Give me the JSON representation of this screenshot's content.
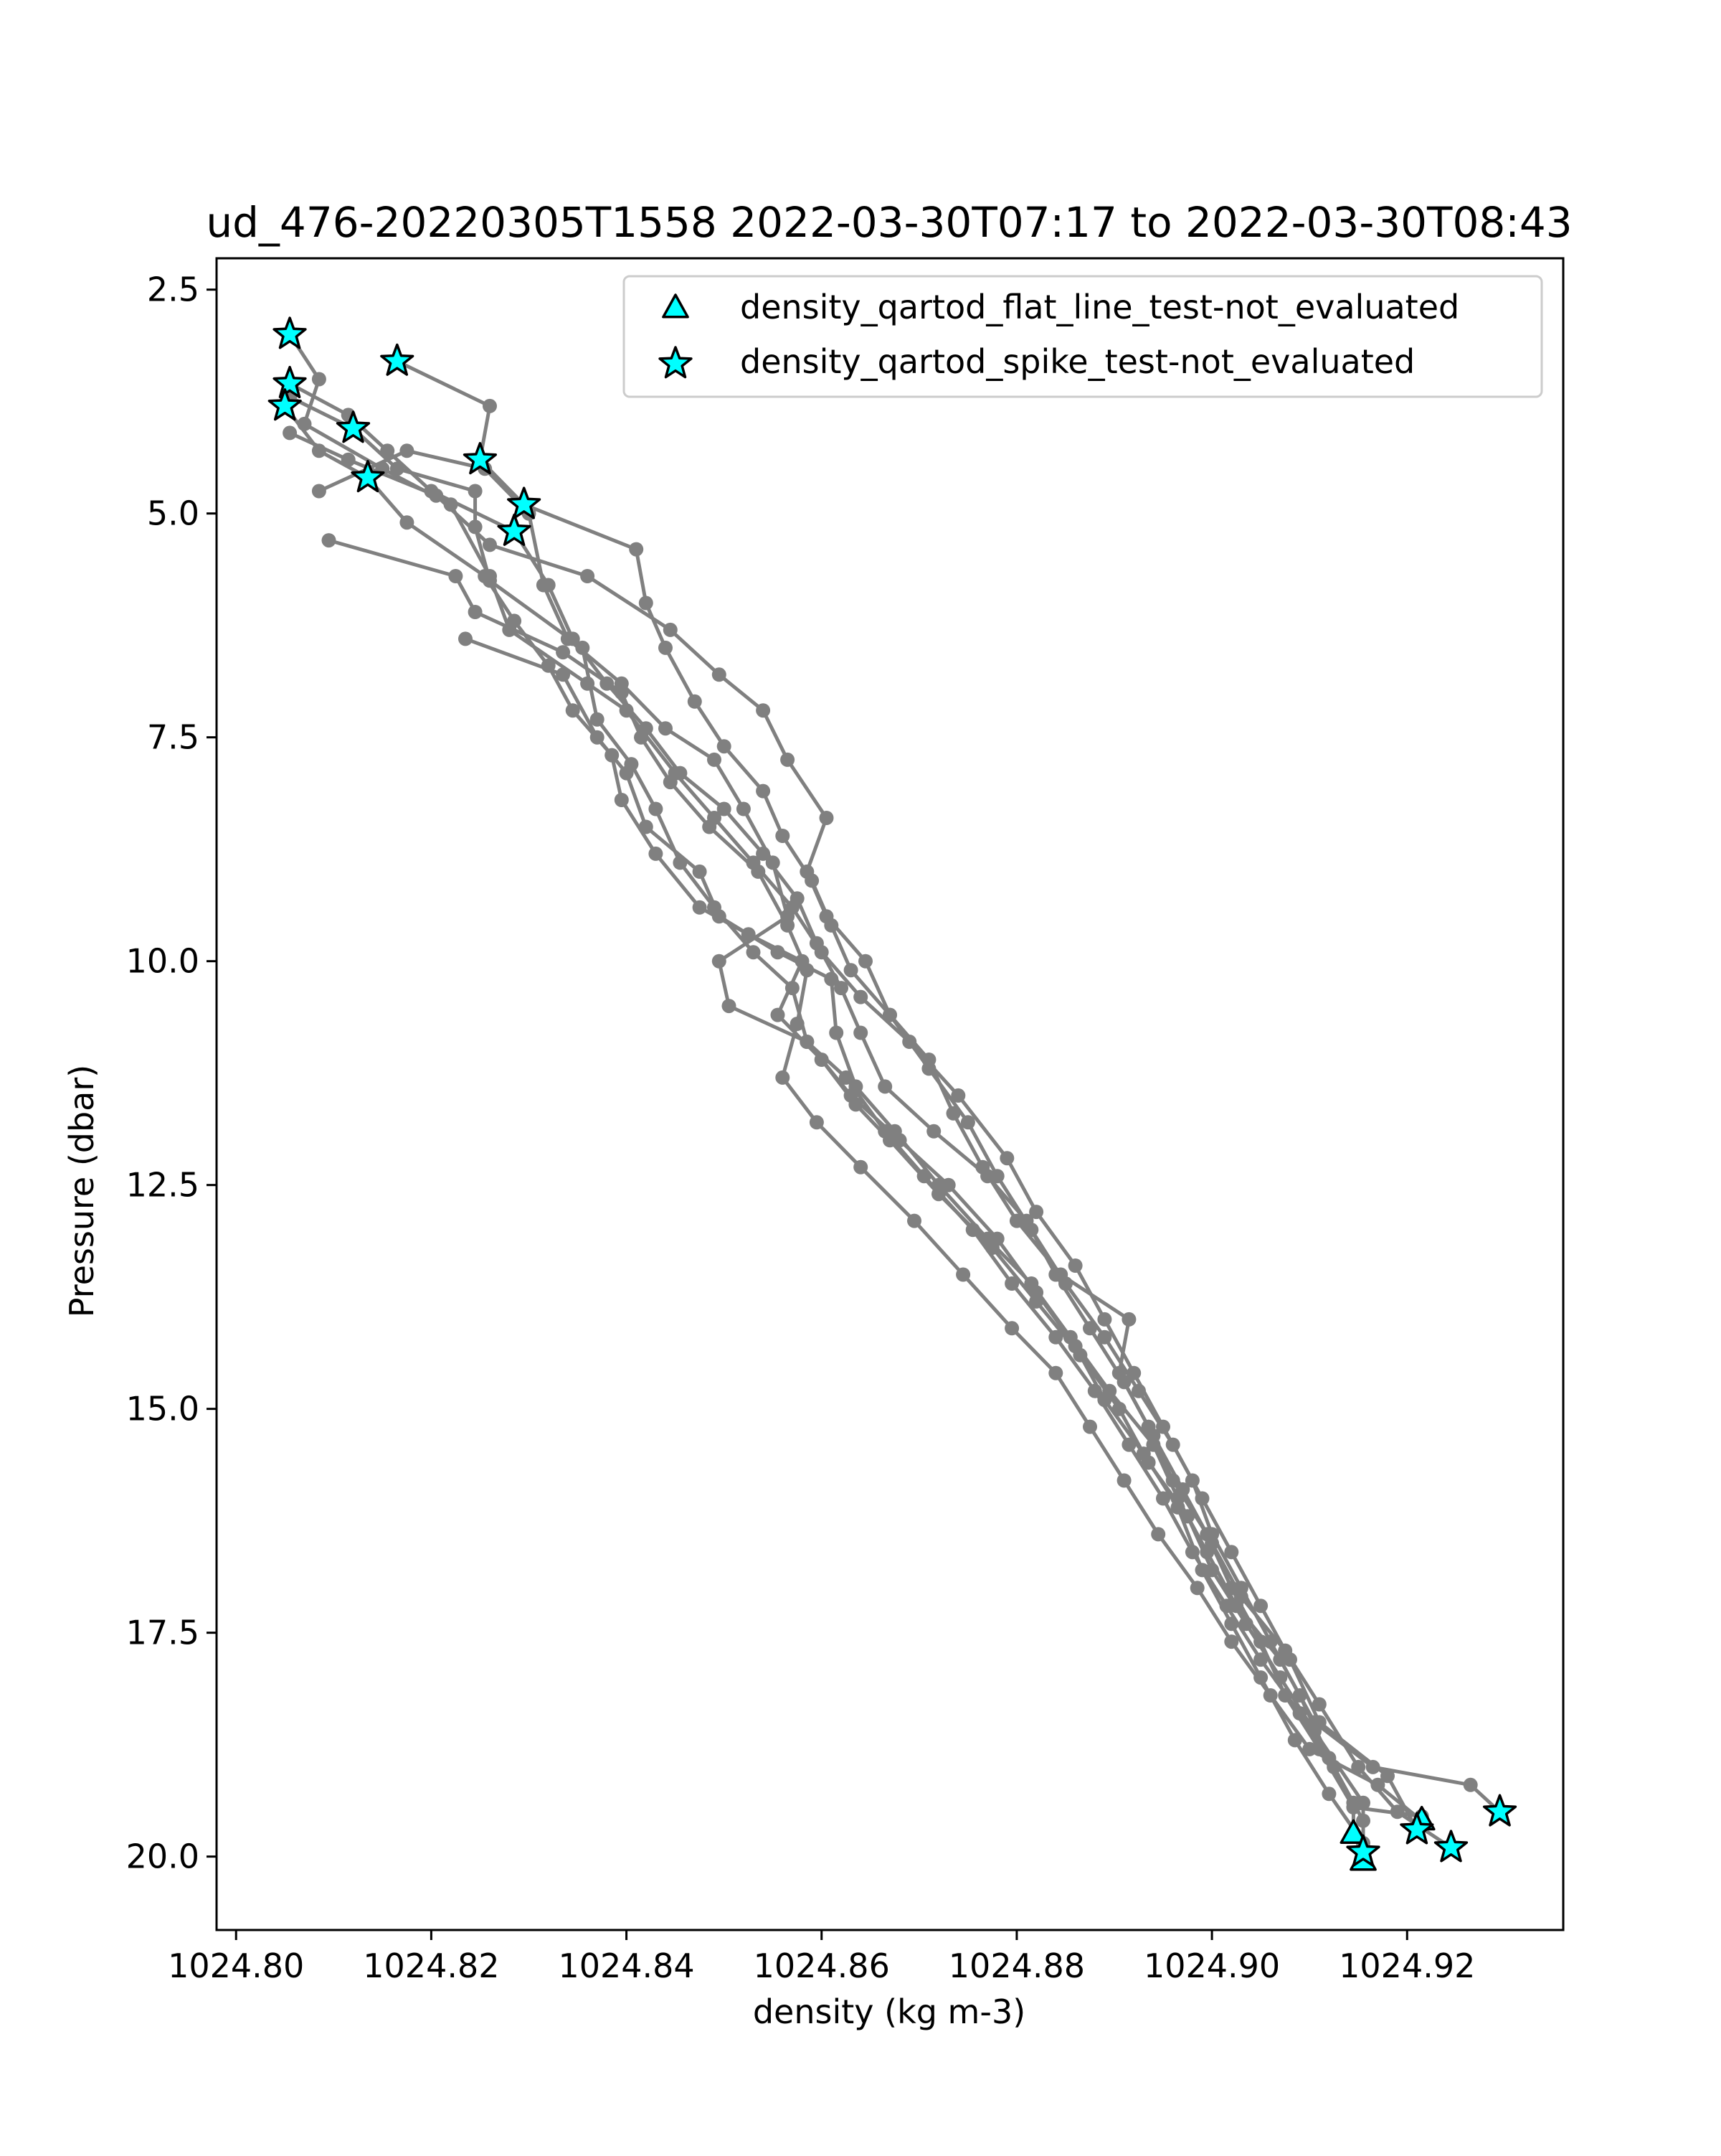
{
  "chart_data": {
    "type": "line",
    "title": "ud_476-20220305T1558 2022-03-30T07:17 to 2022-03-30T08:43",
    "xlabel": "density (kg m-3)",
    "ylabel": "Pressure (dbar)",
    "xlim": [
      1024.798,
      1024.936
    ],
    "ylim": [
      20.82,
      2.15
    ],
    "y_inverted": true,
    "grid": false,
    "legend_position": "top-right",
    "xticks": [
      1024.8,
      1024.82,
      1024.84,
      1024.86,
      1024.88,
      1024.9,
      1024.92
    ],
    "xtick_labels": [
      "1024.80",
      "1024.82",
      "1024.84",
      "1024.86",
      "1024.88",
      "1024.90",
      "1024.92"
    ],
    "yticks": [
      2.5,
      5.0,
      7.5,
      10.0,
      12.5,
      15.0,
      17.5,
      20.0
    ],
    "ytick_labels": [
      "2.5",
      "5.0",
      "7.5",
      "10.0",
      "12.5",
      "15.0",
      "17.5",
      "20.0"
    ],
    "line_color": "#808080",
    "marker_color": "#00ffff",
    "marker_edge_color": "#000000",
    "legend": [
      {
        "label": "density_qartod_flat_line_test-not_evaluated",
        "marker": "triangle"
      },
      {
        "label": "density_qartod_spike_test-not_evaluated",
        "marker": "star"
      }
    ],
    "profiles": [
      [
        [
          1024.8055,
          3.0
        ],
        [
          1024.8085,
          3.5
        ],
        [
          1024.807,
          4.0
        ],
        [
          1024.815,
          4.5
        ],
        [
          1024.822,
          4.9
        ],
        [
          1024.826,
          5.7
        ],
        [
          1024.828,
          6.3
        ],
        [
          1024.836,
          6.9
        ],
        [
          1024.84,
          7.2
        ],
        [
          1024.845,
          7.9
        ],
        [
          1024.849,
          8.4
        ],
        [
          1024.853,
          8.9
        ],
        [
          1024.857,
          9.4
        ],
        [
          1024.86,
          9.9
        ],
        [
          1024.864,
          10.4
        ],
        [
          1024.869,
          10.9
        ],
        [
          1024.874,
          11.5
        ],
        [
          1024.879,
          12.2
        ],
        [
          1024.882,
          12.8
        ],
        [
          1024.886,
          13.4
        ],
        [
          1024.889,
          14.0
        ],
        [
          1024.892,
          14.6
        ],
        [
          1024.895,
          15.2
        ],
        [
          1024.898,
          15.8
        ],
        [
          1024.9,
          16.4
        ],
        [
          1024.903,
          17.0
        ],
        [
          1024.906,
          17.6
        ],
        [
          1024.909,
          18.2
        ],
        [
          1024.912,
          18.9
        ],
        [
          1024.9145,
          19.4
        ],
        [
          1024.9145,
          19.75
        ]
      ],
      [
        [
          1024.8165,
          3.3
        ],
        [
          1024.826,
          3.8
        ],
        [
          1024.825,
          4.4
        ],
        [
          1024.8295,
          4.9
        ],
        [
          1024.841,
          5.4
        ],
        [
          1024.842,
          6.0
        ],
        [
          1024.844,
          6.5
        ],
        [
          1024.847,
          7.1
        ],
        [
          1024.85,
          7.6
        ],
        [
          1024.854,
          8.1
        ],
        [
          1024.856,
          8.6
        ],
        [
          1024.859,
          9.1
        ],
        [
          1024.861,
          9.6
        ],
        [
          1024.863,
          10.1
        ],
        [
          1024.867,
          10.6
        ],
        [
          1024.871,
          11.2
        ],
        [
          1024.875,
          11.8
        ],
        [
          1024.878,
          12.4
        ],
        [
          1024.8815,
          13.0
        ],
        [
          1024.885,
          13.6
        ],
        [
          1024.889,
          14.2
        ],
        [
          1024.8925,
          14.8
        ],
        [
          1024.896,
          15.4
        ],
        [
          1024.899,
          16.0
        ],
        [
          1024.902,
          16.6
        ],
        [
          1024.905,
          17.2
        ],
        [
          1024.908,
          17.8
        ],
        [
          1024.911,
          18.5
        ],
        [
          1024.918,
          19.1
        ],
        [
          1024.921,
          19.7
        ]
      ],
      [
        [
          1024.8055,
          3.55
        ],
        [
          1024.8115,
          3.9
        ],
        [
          1024.8155,
          4.3
        ],
        [
          1024.82,
          4.75
        ],
        [
          1024.8285,
          5.2
        ],
        [
          1024.832,
          5.8
        ],
        [
          1024.8345,
          6.4
        ],
        [
          1024.838,
          6.9
        ],
        [
          1024.842,
          7.4
        ],
        [
          1024.8455,
          7.9
        ],
        [
          1024.85,
          8.3
        ],
        [
          1024.854,
          8.8
        ],
        [
          1024.8575,
          9.3
        ],
        [
          1024.8595,
          9.8
        ],
        [
          1024.862,
          10.3
        ],
        [
          1024.864,
          10.8
        ],
        [
          1024.8665,
          11.4
        ],
        [
          1024.8715,
          11.9
        ],
        [
          1024.877,
          12.4
        ],
        [
          1024.881,
          12.9
        ],
        [
          1024.884,
          13.5
        ],
        [
          1024.8875,
          14.1
        ],
        [
          1024.891,
          14.7
        ],
        [
          1024.894,
          15.3
        ],
        [
          1024.897,
          15.9
        ],
        [
          1024.9,
          16.5
        ],
        [
          1024.903,
          17.1
        ],
        [
          1024.9075,
          17.7
        ],
        [
          1024.911,
          18.3
        ],
        [
          1024.915,
          19.0
        ],
        [
          1024.919,
          19.5
        ],
        [
          1024.9245,
          19.9
        ]
      ],
      [
        [
          1024.8055,
          3.7
        ],
        [
          1024.812,
          4.05
        ],
        [
          1024.8165,
          4.5
        ],
        [
          1024.8245,
          4.75
        ],
        [
          1024.8245,
          5.15
        ],
        [
          1024.826,
          5.75
        ],
        [
          1024.8355,
          6.5
        ],
        [
          1024.837,
          7.3
        ],
        [
          1024.8405,
          7.8
        ],
        [
          1024.843,
          8.3
        ],
        [
          1024.8455,
          8.9
        ],
        [
          1024.849,
          9.4
        ],
        [
          1024.853,
          9.9
        ],
        [
          1024.857,
          10.3
        ],
        [
          1024.8585,
          10.9
        ],
        [
          1024.863,
          11.5
        ],
        [
          1024.868,
          12.0
        ],
        [
          1024.873,
          12.5
        ],
        [
          1024.878,
          13.1
        ],
        [
          1024.882,
          13.7
        ],
        [
          1024.886,
          14.3
        ],
        [
          1024.889,
          14.9
        ],
        [
          1024.893,
          15.5
        ],
        [
          1024.8965,
          16.1
        ],
        [
          1024.899,
          16.8
        ],
        [
          1024.902,
          17.4
        ],
        [
          1024.905,
          18.0
        ],
        [
          1024.9085,
          18.7
        ],
        [
          1024.912,
          19.3
        ],
        [
          1024.9155,
          19.85
        ]
      ],
      [
        [
          1024.805,
          3.8
        ],
        [
          1024.8085,
          4.3
        ],
        [
          1024.8135,
          4.6
        ],
        [
          1024.8175,
          5.1
        ],
        [
          1024.8255,
          5.7
        ],
        [
          1024.8285,
          6.2
        ],
        [
          1024.832,
          6.7
        ],
        [
          1024.8345,
          7.2
        ],
        [
          1024.8385,
          7.7
        ],
        [
          1024.8395,
          8.2
        ],
        [
          1024.843,
          8.8
        ],
        [
          1024.8475,
          9.4
        ],
        [
          1024.8525,
          9.7
        ],
        [
          1024.858,
          10.0
        ],
        [
          1024.8555,
          10.6
        ],
        [
          1024.86,
          11.1
        ],
        [
          1024.8635,
          11.6
        ],
        [
          1024.867,
          12.0
        ],
        [
          1024.872,
          12.6
        ],
        [
          1024.8775,
          13.2
        ],
        [
          1024.882,
          13.8
        ],
        [
          1024.8865,
          14.4
        ],
        [
          1024.8905,
          15.0
        ],
        [
          1024.8935,
          15.6
        ],
        [
          1024.8975,
          16.2
        ],
        [
          1024.9,
          16.8
        ],
        [
          1024.9035,
          17.4
        ],
        [
          1024.907,
          18.0
        ],
        [
          1024.9105,
          18.6
        ],
        [
          1024.9155,
          19.4
        ],
        [
          1024.9155,
          20.0
        ]
      ],
      [
        [
          1024.8085,
          4.75
        ],
        [
          1024.8175,
          4.3
        ],
        [
          1024.8255,
          4.5
        ],
        [
          1024.83,
          5.0
        ],
        [
          1024.8315,
          5.8
        ],
        [
          1024.834,
          6.4
        ],
        [
          1024.8395,
          6.9
        ],
        [
          1024.844,
          7.4
        ],
        [
          1024.849,
          7.75
        ],
        [
          1024.852,
          8.3
        ],
        [
          1024.855,
          8.9
        ],
        [
          1024.8565,
          9.5
        ],
        [
          1024.8495,
          10.0
        ],
        [
          1024.8505,
          10.5
        ],
        [
          1024.8585,
          10.9
        ],
        [
          1024.8625,
          11.3
        ],
        [
          1024.8665,
          11.9
        ],
        [
          1024.8705,
          12.4
        ],
        [
          1024.8755,
          13.0
        ],
        [
          1024.8795,
          13.6
        ],
        [
          1024.884,
          14.2
        ],
        [
          1024.888,
          14.8
        ],
        [
          1024.8915,
          15.4
        ],
        [
          1024.895,
          16.0
        ],
        [
          1024.898,
          16.6
        ],
        [
          1024.9015,
          17.2
        ],
        [
          1024.905,
          17.8
        ],
        [
          1024.909,
          18.4
        ],
        [
          1024.9125,
          19.0
        ],
        [
          1024.9155,
          19.6
        ],
        [
          1024.9155,
          20.05
        ]
      ],
      [
        [
          1024.8095,
          5.3
        ],
        [
          1024.8225,
          5.7
        ],
        [
          1024.8245,
          6.1
        ],
        [
          1024.8335,
          6.55
        ],
        [
          1024.8395,
          7.0
        ],
        [
          1024.8415,
          7.5
        ],
        [
          1024.8445,
          8.0
        ],
        [
          1024.8485,
          8.5
        ],
        [
          1024.8535,
          9.0
        ],
        [
          1024.8565,
          9.6
        ],
        [
          1024.8585,
          10.1
        ],
        [
          1024.8575,
          10.7
        ],
        [
          1024.856,
          11.3
        ],
        [
          1024.8595,
          11.8
        ],
        [
          1024.864,
          12.3
        ],
        [
          1024.8695,
          12.9
        ],
        [
          1024.8745,
          13.5
        ],
        [
          1024.8795,
          14.1
        ],
        [
          1024.884,
          14.6
        ],
        [
          1024.8875,
          15.2
        ],
        [
          1024.891,
          15.8
        ],
        [
          1024.8945,
          16.4
        ],
        [
          1024.8985,
          17.0
        ],
        [
          1024.902,
          17.6
        ],
        [
          1024.906,
          18.2
        ],
        [
          1024.91,
          18.8
        ],
        [
          1024.917,
          19.2
        ],
        [
          1024.9215,
          19.6
        ]
      ],
      [
        [
          1024.8235,
          6.4
        ],
        [
          1024.8335,
          6.8
        ],
        [
          1024.837,
          7.5
        ],
        [
          1024.84,
          7.9
        ],
        [
          1024.842,
          8.5
        ],
        [
          1024.8475,
          9.0
        ],
        [
          1024.8495,
          9.5
        ],
        [
          1024.8555,
          9.9
        ],
        [
          1024.861,
          10.2
        ],
        [
          1024.8615,
          10.8
        ],
        [
          1024.8635,
          11.4
        ],
        [
          1024.8675,
          11.9
        ],
        [
          1024.872,
          12.5
        ],
        [
          1024.877,
          13.1
        ],
        [
          1024.8815,
          13.6
        ],
        [
          1024.8855,
          14.2
        ],
        [
          1024.8895,
          14.8
        ],
        [
          1024.894,
          15.4
        ],
        [
          1024.8965,
          16.0
        ],
        [
          1024.8995,
          16.6
        ],
        [
          1024.9025,
          17.2
        ],
        [
          1024.907,
          17.8
        ],
        [
          1024.9105,
          18.5
        ],
        [
          1024.9165,
          19.0
        ],
        [
          1024.9265,
          19.2
        ],
        [
          1024.9295,
          19.5
        ]
      ],
      [
        [
          1024.8055,
          4.1
        ],
        [
          1024.8115,
          4.4
        ],
        [
          1024.8205,
          4.8
        ],
        [
          1024.826,
          5.35
        ],
        [
          1024.836,
          5.7
        ],
        [
          1024.8445,
          6.3
        ],
        [
          1024.8495,
          6.8
        ],
        [
          1024.854,
          7.2
        ],
        [
          1024.8565,
          7.75
        ],
        [
          1024.8605,
          8.4
        ],
        [
          1024.8585,
          9.0
        ],
        [
          1024.8605,
          9.5
        ],
        [
          1024.8645,
          10.0
        ],
        [
          1024.867,
          10.6
        ],
        [
          1024.871,
          11.1
        ],
        [
          1024.8735,
          11.7
        ],
        [
          1024.8765,
          12.3
        ],
        [
          1024.88,
          12.9
        ],
        [
          1024.8845,
          13.5
        ],
        [
          1024.8915,
          14.0
        ],
        [
          1024.8905,
          14.6
        ],
        [
          1024.8935,
          15.2
        ],
        [
          1024.896,
          15.8
        ],
        [
          1024.8995,
          16.4
        ],
        [
          1024.902,
          17.0
        ],
        [
          1024.905,
          17.6
        ],
        [
          1024.9075,
          18.2
        ],
        [
          1024.911,
          18.8
        ],
        [
          1024.9145,
          19.45
        ],
        [
          1024.9215,
          19.55
        ]
      ]
    ],
    "spike_markers": [
      [
        1024.8055,
        3.0
      ],
      [
        1024.8165,
        3.3
      ],
      [
        1024.8055,
        3.55
      ],
      [
        1024.805,
        3.8
      ],
      [
        1024.812,
        4.05
      ],
      [
        1024.825,
        4.4
      ],
      [
        1024.8135,
        4.6
      ],
      [
        1024.8295,
        4.9
      ],
      [
        1024.8285,
        5.2
      ],
      [
        1024.9295,
        19.5
      ],
      [
        1024.921,
        19.7
      ],
      [
        1024.9245,
        19.9
      ],
      [
        1024.9155,
        19.95
      ]
    ],
    "flat_line_markers": [
      [
        1024.9145,
        19.75
      ],
      [
        1024.9215,
        19.6
      ],
      [
        1024.9155,
        20.05
      ]
    ]
  }
}
